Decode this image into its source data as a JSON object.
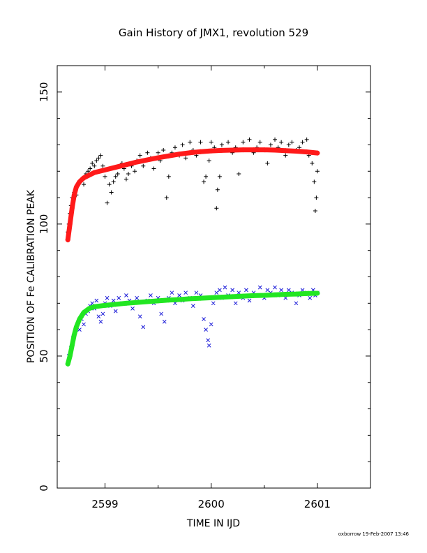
{
  "chart_data": {
    "type": "scatter",
    "title": "Gain History of JMX1, revolution 529",
    "xlabel": "TIME IN IJD",
    "ylabel": "POSITION OF Fe CALIBRATION PEAK",
    "xlim": [
      2598.55,
      2601.5
    ],
    "ylim": [
      0,
      160
    ],
    "xticks": [
      2599,
      2600,
      2601
    ],
    "yticks": [
      0,
      50,
      100,
      150
    ],
    "grid": false,
    "series": [
      {
        "name": "",
        "marker": "plus",
        "color": "#000000",
        "points": [
          [
            2598.65,
            97
          ],
          [
            2598.66,
            100
          ],
          [
            2598.67,
            104
          ],
          [
            2598.68,
            107
          ],
          [
            2598.69,
            110
          ],
          [
            2598.7,
            108
          ],
          [
            2598.71,
            112
          ],
          [
            2598.72,
            113
          ],
          [
            2598.73,
            111
          ],
          [
            2598.74,
            115
          ],
          [
            2598.76,
            116
          ],
          [
            2598.78,
            117
          ],
          [
            2598.8,
            115
          ],
          [
            2598.82,
            119
          ],
          [
            2598.84,
            120
          ],
          [
            2598.86,
            121
          ],
          [
            2598.88,
            123
          ],
          [
            2598.9,
            122
          ],
          [
            2598.92,
            124
          ],
          [
            2598.94,
            125
          ],
          [
            2598.96,
            126
          ],
          [
            2598.98,
            122
          ],
          [
            2599.0,
            118
          ],
          [
            2599.02,
            108
          ],
          [
            2599.04,
            115
          ],
          [
            2599.06,
            112
          ],
          [
            2599.08,
            116
          ],
          [
            2599.1,
            118
          ],
          [
            2599.12,
            119
          ],
          [
            2599.14,
            122
          ],
          [
            2599.16,
            123
          ],
          [
            2599.18,
            121
          ],
          [
            2599.2,
            117
          ],
          [
            2599.22,
            119
          ],
          [
            2599.25,
            122
          ],
          [
            2599.28,
            120
          ],
          [
            2599.3,
            124
          ],
          [
            2599.33,
            126
          ],
          [
            2599.36,
            122
          ],
          [
            2599.4,
            127
          ],
          [
            2599.43,
            125
          ],
          [
            2599.46,
            121
          ],
          [
            2599.5,
            127
          ],
          [
            2599.52,
            124
          ],
          [
            2599.55,
            128
          ],
          [
            2599.58,
            110
          ],
          [
            2599.6,
            118
          ],
          [
            2599.63,
            127
          ],
          [
            2599.66,
            129
          ],
          [
            2599.7,
            126
          ],
          [
            2599.73,
            130
          ],
          [
            2599.76,
            125
          ],
          [
            2599.8,
            131
          ],
          [
            2599.83,
            128
          ],
          [
            2599.86,
            126
          ],
          [
            2599.9,
            131
          ],
          [
            2599.93,
            116
          ],
          [
            2599.95,
            118
          ],
          [
            2599.98,
            124
          ],
          [
            2600.0,
            131
          ],
          [
            2600.03,
            129
          ],
          [
            2600.05,
            106
          ],
          [
            2600.06,
            113
          ],
          [
            2600.08,
            118
          ],
          [
            2600.1,
            130
          ],
          [
            2600.13,
            128
          ],
          [
            2600.16,
            131
          ],
          [
            2600.2,
            127
          ],
          [
            2600.23,
            129
          ],
          [
            2600.26,
            119
          ],
          [
            2600.3,
            131
          ],
          [
            2600.33,
            128
          ],
          [
            2600.36,
            132
          ],
          [
            2600.4,
            127
          ],
          [
            2600.43,
            129
          ],
          [
            2600.46,
            131
          ],
          [
            2600.5,
            128
          ],
          [
            2600.53,
            123
          ],
          [
            2600.56,
            130
          ],
          [
            2600.6,
            132
          ],
          [
            2600.63,
            129
          ],
          [
            2600.66,
            131
          ],
          [
            2600.7,
            126
          ],
          [
            2600.73,
            130
          ],
          [
            2600.76,
            131
          ],
          [
            2600.8,
            128
          ],
          [
            2600.83,
            129
          ],
          [
            2600.86,
            131
          ],
          [
            2600.9,
            132
          ],
          [
            2600.92,
            126
          ],
          [
            2600.95,
            123
          ],
          [
            2600.97,
            116
          ],
          [
            2600.98,
            105
          ],
          [
            2600.99,
            110
          ],
          [
            2601.0,
            120
          ]
        ]
      },
      {
        "name": "",
        "marker": "cross",
        "color": "#1b1bd8",
        "points": [
          [
            2598.66,
            50
          ],
          [
            2598.68,
            53
          ],
          [
            2598.7,
            57
          ],
          [
            2598.72,
            59
          ],
          [
            2598.74,
            62
          ],
          [
            2598.76,
            60
          ],
          [
            2598.78,
            64
          ],
          [
            2598.8,
            62
          ],
          [
            2598.82,
            66
          ],
          [
            2598.84,
            67
          ],
          [
            2598.86,
            69
          ],
          [
            2598.88,
            70
          ],
          [
            2598.9,
            68
          ],
          [
            2598.92,
            71
          ],
          [
            2598.94,
            65
          ],
          [
            2598.96,
            63
          ],
          [
            2598.98,
            66
          ],
          [
            2599.0,
            70
          ],
          [
            2599.02,
            72
          ],
          [
            2599.05,
            69
          ],
          [
            2599.08,
            71
          ],
          [
            2599.1,
            67
          ],
          [
            2599.13,
            72
          ],
          [
            2599.16,
            70
          ],
          [
            2599.2,
            73
          ],
          [
            2599.23,
            71
          ],
          [
            2599.26,
            68
          ],
          [
            2599.3,
            72
          ],
          [
            2599.33,
            65
          ],
          [
            2599.36,
            61
          ],
          [
            2599.4,
            71
          ],
          [
            2599.43,
            73
          ],
          [
            2599.46,
            70
          ],
          [
            2599.5,
            72
          ],
          [
            2599.53,
            66
          ],
          [
            2599.56,
            63
          ],
          [
            2599.6,
            72
          ],
          [
            2599.63,
            74
          ],
          [
            2599.66,
            70
          ],
          [
            2599.7,
            73
          ],
          [
            2599.73,
            71
          ],
          [
            2599.76,
            74
          ],
          [
            2599.8,
            72
          ],
          [
            2599.83,
            69
          ],
          [
            2599.86,
            74
          ],
          [
            2599.9,
            73
          ],
          [
            2599.93,
            64
          ],
          [
            2599.95,
            60
          ],
          [
            2599.97,
            56
          ],
          [
            2599.98,
            54
          ],
          [
            2600.0,
            62
          ],
          [
            2600.02,
            70
          ],
          [
            2600.05,
            74
          ],
          [
            2600.08,
            75
          ],
          [
            2600.1,
            72
          ],
          [
            2600.13,
            76
          ],
          [
            2600.16,
            73
          ],
          [
            2600.2,
            75
          ],
          [
            2600.23,
            70
          ],
          [
            2600.26,
            74
          ],
          [
            2600.3,
            72
          ],
          [
            2600.33,
            75
          ],
          [
            2600.36,
            71
          ],
          [
            2600.4,
            74
          ],
          [
            2600.43,
            73
          ],
          [
            2600.46,
            76
          ],
          [
            2600.5,
            72
          ],
          [
            2600.53,
            75
          ],
          [
            2600.56,
            74
          ],
          [
            2600.6,
            76
          ],
          [
            2600.63,
            73
          ],
          [
            2600.66,
            75
          ],
          [
            2600.7,
            72
          ],
          [
            2600.73,
            75
          ],
          [
            2600.76,
            74
          ],
          [
            2600.8,
            70
          ],
          [
            2600.83,
            73
          ],
          [
            2600.86,
            75
          ],
          [
            2600.9,
            74
          ],
          [
            2600.93,
            72
          ],
          [
            2600.96,
            75
          ],
          [
            2600.98,
            73
          ],
          [
            2601.0,
            74
          ]
        ]
      },
      {
        "name": "",
        "marker": "plus-line",
        "color": "#ff1a1a",
        "points": [
          [
            2598.65,
            94
          ],
          [
            2598.67,
            100
          ],
          [
            2598.69,
            106
          ],
          [
            2598.71,
            111
          ],
          [
            2598.73,
            114
          ],
          [
            2598.76,
            116
          ],
          [
            2598.8,
            117.5
          ],
          [
            2598.85,
            118.5
          ],
          [
            2598.9,
            119.5
          ],
          [
            2599.0,
            120.5
          ],
          [
            2599.1,
            121.5
          ],
          [
            2599.2,
            122.5
          ],
          [
            2599.3,
            123.5
          ],
          [
            2599.4,
            124.3
          ],
          [
            2599.5,
            125.1
          ],
          [
            2599.6,
            125.8
          ],
          [
            2599.7,
            126.5
          ],
          [
            2599.8,
            127.0
          ],
          [
            2599.9,
            127.4
          ],
          [
            2600.0,
            127.7
          ],
          [
            2600.1,
            127.9
          ],
          [
            2600.2,
            128.0
          ],
          [
            2600.3,
            128.1
          ],
          [
            2600.4,
            128.1
          ],
          [
            2600.5,
            128.1
          ],
          [
            2600.6,
            128.0
          ],
          [
            2600.7,
            127.8
          ],
          [
            2600.8,
            127.6
          ],
          [
            2600.9,
            127.3
          ],
          [
            2601.0,
            126.9
          ]
        ]
      },
      {
        "name": "",
        "marker": "plus-line",
        "color": "#22e622",
        "points": [
          [
            2598.65,
            47
          ],
          [
            2598.67,
            50
          ],
          [
            2598.69,
            54
          ],
          [
            2598.71,
            58
          ],
          [
            2598.73,
            61
          ],
          [
            2598.76,
            64
          ],
          [
            2598.8,
            66.5
          ],
          [
            2598.85,
            68
          ],
          [
            2598.9,
            68.7
          ],
          [
            2599.0,
            69.2
          ],
          [
            2599.1,
            69.6
          ],
          [
            2599.2,
            70.0
          ],
          [
            2599.3,
            70.3
          ],
          [
            2599.4,
            70.6
          ],
          [
            2599.5,
            70.9
          ],
          [
            2599.6,
            71.2
          ],
          [
            2599.7,
            71.4
          ],
          [
            2599.8,
            71.7
          ],
          [
            2599.9,
            71.9
          ],
          [
            2600.0,
            72.1
          ],
          [
            2600.1,
            72.3
          ],
          [
            2600.2,
            72.5
          ],
          [
            2600.3,
            72.7
          ],
          [
            2600.4,
            72.9
          ],
          [
            2600.5,
            73.0
          ],
          [
            2600.6,
            73.2
          ],
          [
            2600.7,
            73.4
          ],
          [
            2600.8,
            73.5
          ],
          [
            2600.9,
            73.7
          ],
          [
            2601.0,
            73.8
          ]
        ]
      }
    ]
  },
  "footer": "oxborrow 19-Feb-2007 13:46"
}
